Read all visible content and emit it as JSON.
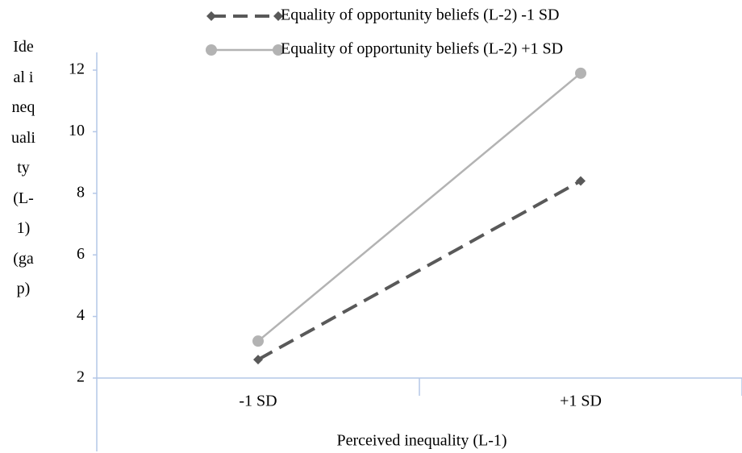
{
  "chart_data": {
    "type": "line",
    "x_label": "Perceived inequality (L-1)",
    "y_label": "Ideal inequality (L-1) (gap)",
    "categories": [
      "-1 SD",
      "+1 SD"
    ],
    "series": [
      {
        "name": "Equality of opportunity beliefs (L-2) -1 SD",
        "color": "#595959",
        "dash": true,
        "marker": "diamond",
        "values": [
          2.6,
          8.4
        ]
      },
      {
        "name": "Equality of opportunity beliefs (L-2) +1 SD",
        "color": "#b3b3b3",
        "dash": false,
        "marker": "circle",
        "values": [
          3.2,
          11.9
        ]
      }
    ],
    "ylim": [
      2,
      12
    ],
    "yticks": [
      2,
      4,
      6,
      8,
      10,
      12
    ],
    "grid": false,
    "legend": "top"
  }
}
